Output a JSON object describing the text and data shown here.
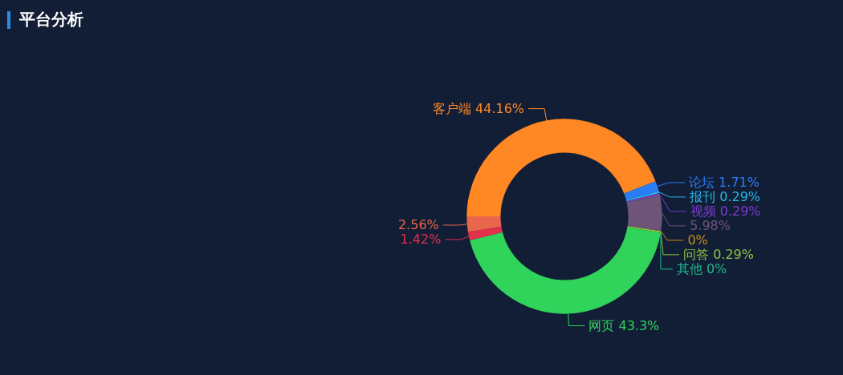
{
  "chart_data": {
    "type": "donut",
    "title": "平台分析",
    "categories": [
      "客户端",
      "论坛",
      "报刊",
      "视频",
      null,
      null,
      "问答",
      "其他",
      "网页",
      null,
      null
    ],
    "values": [
      44.16,
      1.71,
      0.29,
      0.29,
      5.98,
      0,
      0.29,
      0,
      43.3,
      1.42,
      2.56
    ],
    "colors": [
      "#ff8724",
      "#2a7ef5",
      "#26b8e6",
      "#7b3ccf",
      "#6e5578",
      "#c98d12",
      "#8dc83b",
      "#1eb98b",
      "#30d45a",
      "#e2304b",
      "#e8664c"
    ],
    "value_labels": [
      "44.16%",
      "1.71%",
      "0.29%",
      "0.29%",
      "5.98%",
      "0%",
      "0.29%",
      "0%",
      "43.3%",
      "1.42%",
      "2.56%"
    ],
    "legend": false
  }
}
